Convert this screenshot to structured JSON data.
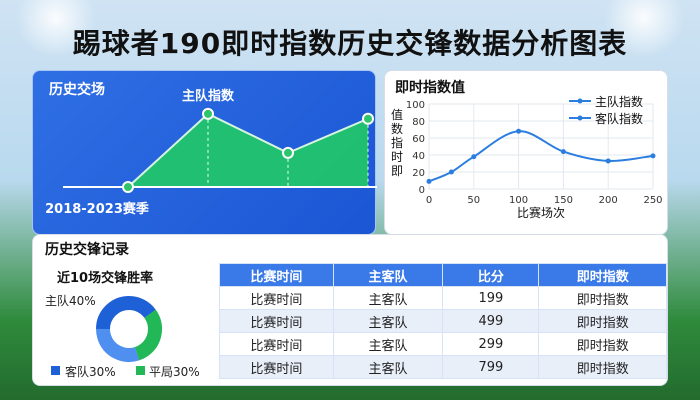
{
  "page": {
    "title": "踢球者190即时指数历史交锋数据分析图表"
  },
  "history_panel": {
    "title": "历史交场",
    "point_label": "主队指数",
    "period_label": "2018-2023赛季",
    "colors": {
      "panel": "#1f5ad8",
      "area": "#22c36b",
      "line": "#d6f5dd"
    }
  },
  "realtime_panel": {
    "title": "即时指数值",
    "ylabel": "值数指时即",
    "xlabel": "比赛场次"
  },
  "records_panel": {
    "title": "历史交锋记录",
    "rate_title": "近10场交锋胜率",
    "legend": {
      "home": "主队40%",
      "away": "客队30%",
      "draw": "平局30%"
    },
    "table": {
      "headers": [
        "比赛时间",
        "主客队",
        "比分",
        "即时指数"
      ],
      "rows": [
        [
          "比赛时间",
          "主客队",
          "199",
          "即时指数"
        ],
        [
          "比赛时间",
          "主客队",
          "499",
          "即时指数"
        ],
        [
          "比赛时间",
          "主客队",
          "299",
          "即时指数"
        ],
        [
          "比赛时间",
          "主客队",
          "799",
          "即时指数"
        ]
      ]
    }
  },
  "chart_data": [
    {
      "type": "area",
      "title": "历史交场",
      "x": [
        0,
        1,
        2,
        3
      ],
      "series": [
        {
          "name": "主队指数",
          "values": [
            0,
            0.75,
            0.35,
            0.7
          ]
        }
      ],
      "xlabel": "2018-2023赛季",
      "grid": false
    },
    {
      "type": "line",
      "title": "即时指数值",
      "xlabel": "比赛场次",
      "ylabel": "值数指时即",
      "xlim": [
        0,
        250
      ],
      "ylim": [
        0,
        100
      ],
      "xticks": [
        0,
        50,
        100,
        150,
        200,
        250
      ],
      "yticks": [
        0,
        20,
        40,
        60,
        80,
        100
      ],
      "grid": true,
      "legend": "top-right",
      "series": [
        {
          "name": "主队指数",
          "x": [
            0,
            25,
            50,
            100,
            150,
            200,
            250
          ],
          "values": [
            9,
            20,
            38,
            68,
            44,
            33,
            39
          ],
          "color": "#2b7de0"
        },
        {
          "name": "客队指数",
          "x": [],
          "values": [],
          "color": "#2b7de0"
        }
      ]
    },
    {
      "type": "pie",
      "title": "近10场交锋胜率",
      "labels": [
        "主队",
        "客队",
        "平局"
      ],
      "values": [
        40,
        30,
        30
      ],
      "colors": [
        "#1e60d6",
        "#4f8ff0",
        "#22b857"
      ]
    }
  ]
}
